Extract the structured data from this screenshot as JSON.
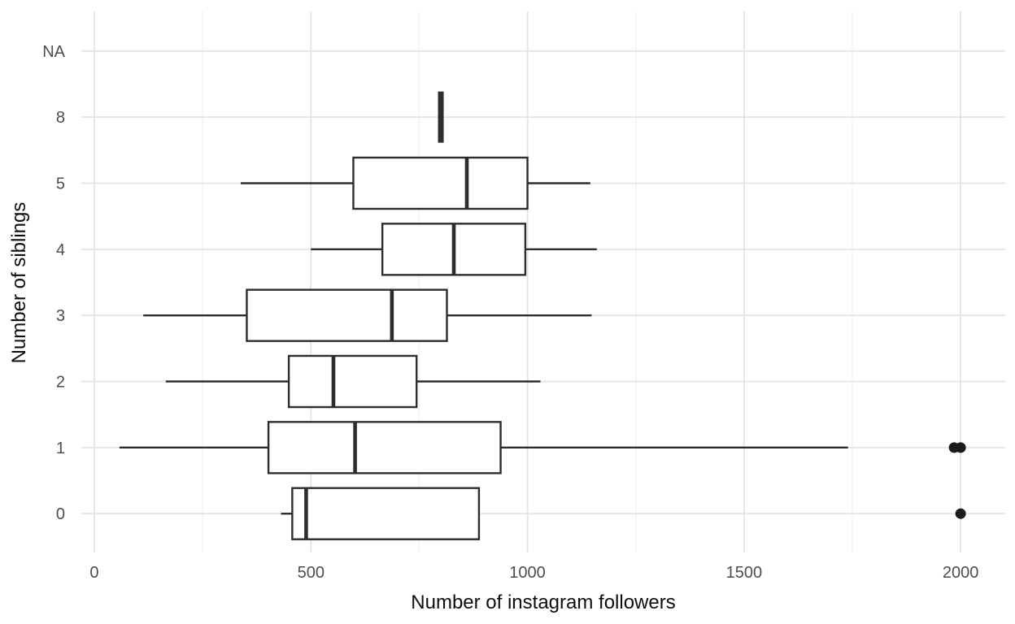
{
  "chart_data": {
    "type": "boxplot",
    "orientation": "horizontal",
    "title": "",
    "xlabel": "Number of instagram followers",
    "ylabel": "Number of siblings",
    "x_ticks": [
      0,
      500,
      1000,
      1500,
      2000
    ],
    "x_minor_ticks": [
      250,
      750,
      1250,
      1750
    ],
    "xlim": [
      -30,
      2103
    ],
    "grid": true,
    "legend": false,
    "categories_top_to_bottom": [
      "NA",
      "8",
      "5",
      "4",
      "3",
      "2",
      "1",
      "0"
    ],
    "boxes": [
      {
        "category": "NA",
        "data": null
      },
      {
        "category": "8",
        "min": 800,
        "q1": 800,
        "median": 800,
        "q3": 800,
        "max": 800,
        "outliers": []
      },
      {
        "category": "5",
        "min": 338,
        "q1": 598,
        "median": 860,
        "q3": 1000,
        "max": 1145,
        "outliers": []
      },
      {
        "category": "4",
        "min": 500,
        "q1": 665,
        "median": 830,
        "q3": 995,
        "max": 1160,
        "outliers": []
      },
      {
        "category": "3",
        "min": 113,
        "q1": 352,
        "median": 687,
        "q3": 814,
        "max": 1148,
        "outliers": []
      },
      {
        "category": "2",
        "min": 165,
        "q1": 449,
        "median": 552,
        "q3": 744,
        "max": 1030,
        "outliers": []
      },
      {
        "category": "1",
        "min": 58,
        "q1": 402,
        "median": 602,
        "q3": 938,
        "max": 1740,
        "outliers": [
          1985,
          2000
        ]
      },
      {
        "category": "0",
        "min": 431,
        "q1": 457,
        "median": 489,
        "q3": 888,
        "max": 888,
        "outliers": [
          2000
        ]
      }
    ],
    "colors": {
      "box_stroke": "#2d2d2d",
      "box_fill": "#ffffff",
      "outlier_fill": "#1b1b1b",
      "grid_major": "#e4e4e4",
      "grid_minor": "#efefef",
      "axis_text": "#4d4d4d",
      "axis_title": "#0d0d0d",
      "background": "#ffffff"
    }
  }
}
